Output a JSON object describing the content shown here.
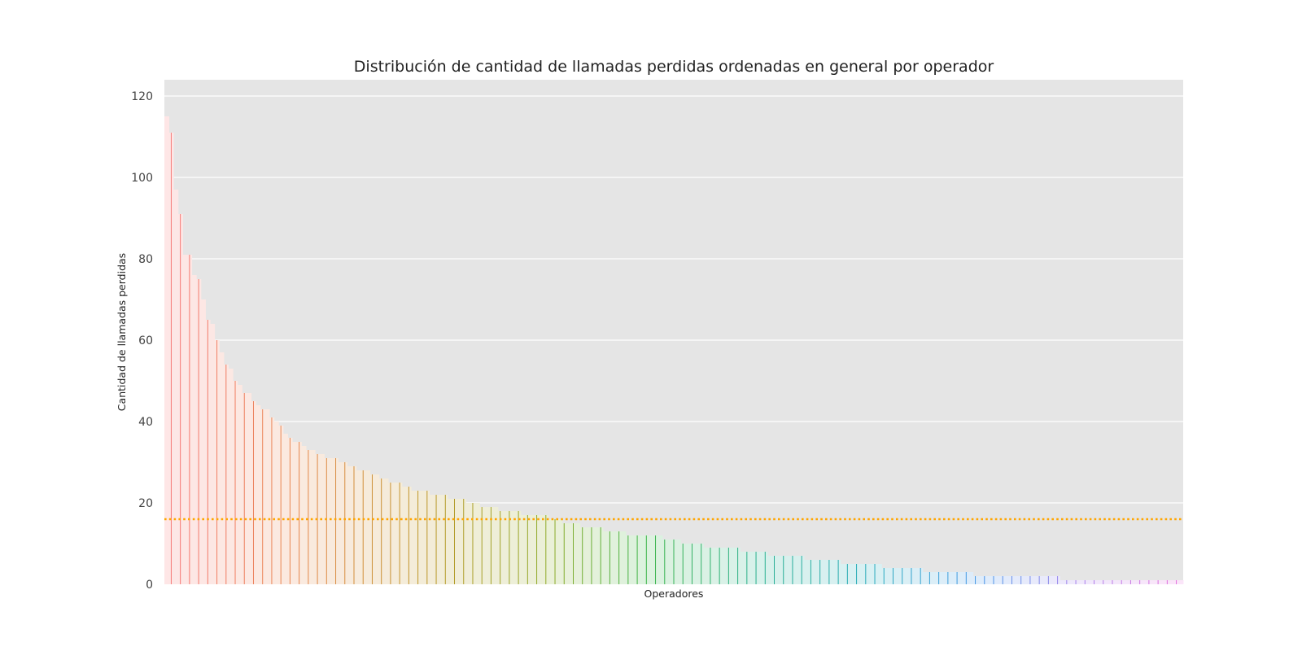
{
  "chart_data": {
    "type": "bar",
    "title": "Distribución de cantidad de llamadas perdidas ordenadas en general por operador",
    "xlabel": "Operadores",
    "ylabel": "Cantidad de llamadas perdidas",
    "ylim": [
      0,
      120
    ],
    "yticks": [
      0,
      20,
      40,
      60,
      80,
      100,
      120
    ],
    "grid": true,
    "reference_line": {
      "value": 16,
      "color": "#FFA500",
      "style": "dotted"
    },
    "values": [
      115,
      111,
      97,
      91,
      81,
      81,
      76,
      75,
      70,
      65,
      64,
      60,
      57,
      54,
      53,
      50,
      49,
      47,
      47,
      45,
      44,
      43,
      43,
      41,
      40,
      39,
      37,
      36,
      35,
      35,
      34,
      33,
      33,
      32,
      32,
      31,
      31,
      31,
      30,
      30,
      29,
      29,
      28,
      28,
      28,
      27,
      27,
      26,
      26,
      25,
      25,
      25,
      24,
      24,
      23,
      23,
      23,
      23,
      22,
      22,
      22,
      22,
      21,
      21,
      21,
      21,
      20,
      20,
      20,
      19,
      19,
      19,
      19,
      18,
      18,
      18,
      18,
      18,
      17,
      17,
      17,
      17,
      17,
      17,
      16,
      16,
      16,
      15,
      15,
      15,
      15,
      14,
      14,
      14,
      14,
      14,
      13,
      13,
      13,
      13,
      13,
      12,
      12,
      12,
      12,
      12,
      12,
      12,
      12,
      11,
      11,
      11,
      11,
      10,
      10,
      10,
      10,
      10,
      9,
      9,
      9,
      9,
      9,
      9,
      9,
      9,
      8,
      8,
      8,
      8,
      8,
      8,
      7,
      7,
      7,
      7,
      7,
      7,
      7,
      7,
      6,
      6,
      6,
      6,
      6,
      6,
      6,
      6,
      5,
      5,
      5,
      5,
      5,
      5,
      5,
      5,
      5,
      4,
      4,
      4,
      4,
      4,
      4,
      4,
      4,
      4,
      3,
      3,
      3,
      3,
      3,
      3,
      3,
      3,
      3,
      3,
      3,
      2,
      2,
      2,
      2,
      2,
      2,
      2,
      2,
      2,
      2,
      2,
      2,
      2,
      2,
      2,
      2,
      2,
      2,
      2,
      1,
      1,
      1,
      1,
      1,
      1,
      1,
      1,
      1,
      1,
      1,
      1,
      1,
      1,
      1,
      1,
      1,
      1,
      1,
      1,
      1,
      1,
      1,
      1,
      1,
      1,
      1
    ]
  }
}
